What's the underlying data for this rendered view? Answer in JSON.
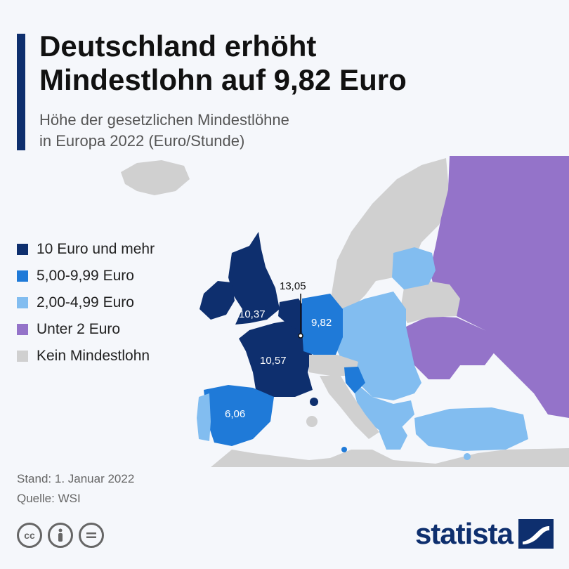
{
  "header": {
    "title_line1": "Deutschland erhöht",
    "title_line2": "Mindestlohn auf 9,82 Euro",
    "subtitle_line1": "Höhe der gesetzlichen Mindestlöhne",
    "subtitle_line2": "in Europa 2022 (Euro/Stunde)"
  },
  "legend": {
    "items": [
      {
        "label": "10 Euro und mehr",
        "color": "#0e2f6e"
      },
      {
        "label": "5,00-9,99 Euro",
        "color": "#1f7ad8"
      },
      {
        "label": "2,00-4,99 Euro",
        "color": "#82bdf0"
      },
      {
        "label": "Unter 2 Euro",
        "color": "#9473c9"
      },
      {
        "label": "Kein Mindestlohn",
        "color": "#d0d0d0"
      }
    ]
  },
  "map_labels": {
    "ireland": "10,37",
    "france": "10,57",
    "germany": "9,82",
    "spain": "6,06",
    "luxembourg": "13,05"
  },
  "footer": {
    "date": "Stand: 1. Januar 2022",
    "source": "Quelle: WSI"
  },
  "license_icons": [
    "cc-icon",
    "attribution-icon",
    "no-derivatives-icon"
  ],
  "brand": {
    "name": "statista"
  },
  "colors": {
    "accent": "#0e2f6e",
    "background": "#f5f7fb"
  }
}
